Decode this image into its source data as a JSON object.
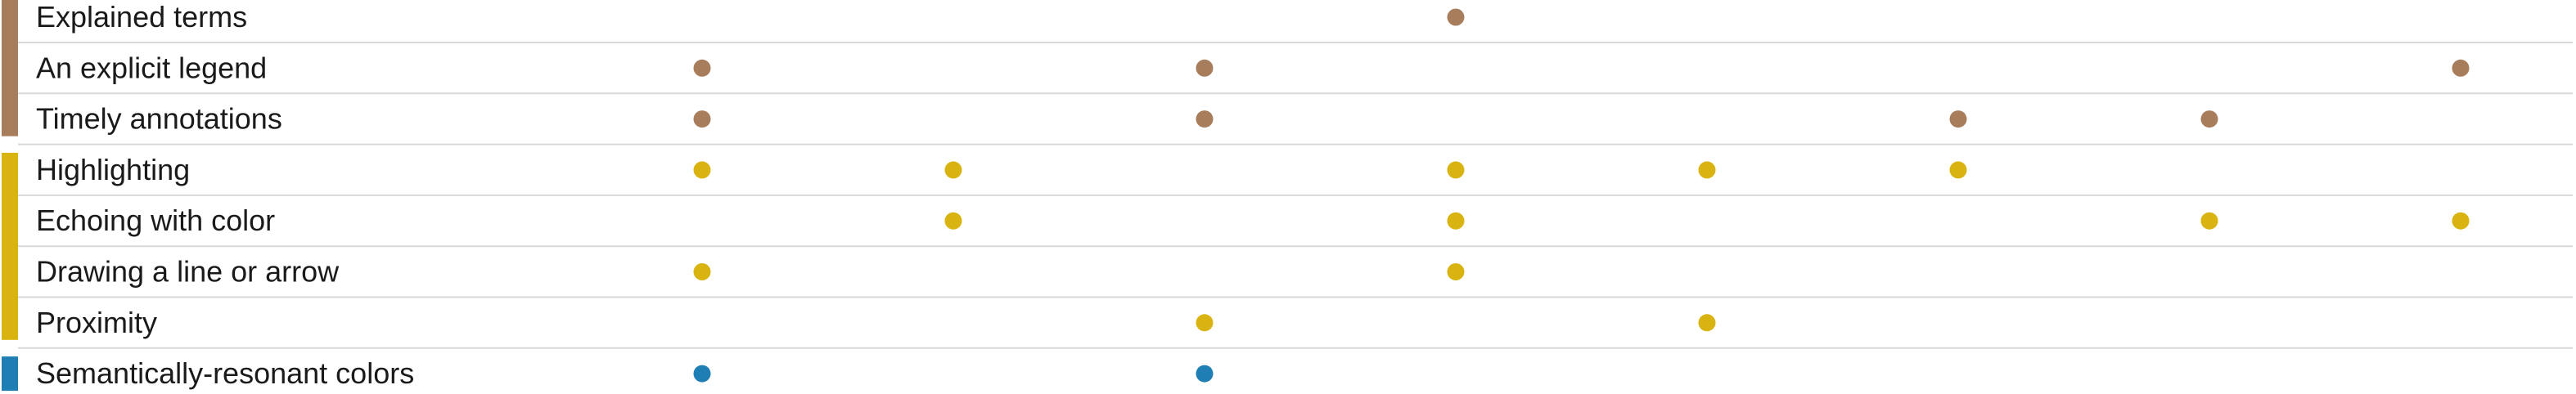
{
  "chart_data": {
    "type": "scatter",
    "title": "",
    "xlabel": "",
    "ylabel": "",
    "columns": 8,
    "groups": [
      {
        "color": "#a87d5c",
        "rows": [
          0,
          1,
          2
        ]
      },
      {
        "color": "#d9b30f",
        "rows": [
          3,
          4,
          5,
          6
        ]
      },
      {
        "color": "#1f7fb5",
        "rows": [
          7
        ]
      }
    ],
    "rows": [
      {
        "label": "Explained terms",
        "color": "#a87d5c",
        "marks": [
          4
        ]
      },
      {
        "label": "An explicit legend",
        "color": "#a87d5c",
        "marks": [
          1,
          3,
          8
        ]
      },
      {
        "label": "Timely annotations",
        "color": "#a87d5c",
        "marks": [
          1,
          3,
          6,
          7
        ]
      },
      {
        "label": "Highlighting",
        "color": "#d9b30f",
        "marks": [
          1,
          2,
          4,
          5,
          6
        ]
      },
      {
        "label": "Echoing with color",
        "color": "#d9b30f",
        "marks": [
          2,
          4,
          7,
          8
        ]
      },
      {
        "label": "Drawing a line or arrow",
        "color": "#d9b30f",
        "marks": [
          1,
          4
        ]
      },
      {
        "label": "Proximity",
        "color": "#d9b30f",
        "marks": [
          3,
          5
        ]
      },
      {
        "label": "Semantically-resonant colors",
        "color": "#1f7fb5",
        "marks": [
          1,
          3
        ]
      }
    ],
    "gridline_color": "#d9d9d9"
  }
}
